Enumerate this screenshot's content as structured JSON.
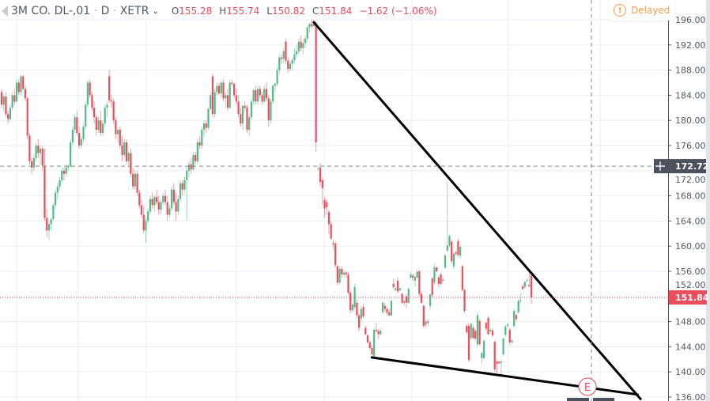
{
  "header": {
    "symbol": "3M CO. DL-,01",
    "interval": "D",
    "exchange": "XETR",
    "open_label": "O",
    "open": "155.28",
    "high_label": "H",
    "high": "155.74",
    "low_label": "L",
    "low": "150.82",
    "close_label": "C",
    "close": "151.84",
    "change": "−1.62 (−1.06%)",
    "delayed": "Delayed"
  },
  "colors": {
    "up": "#53b987",
    "down": "#eb4d5c",
    "grid": "#e9eff3",
    "axis_text": "#4f5966",
    "trendline": "#000000",
    "crosshair_label": "#4c525e",
    "delayed": "#ff9f43"
  },
  "chart_data": {
    "type": "candlestick",
    "ylim": [
      135.5,
      198
    ],
    "y_ticks": [
      "196.00",
      "192.00",
      "188.00",
      "184.00",
      "180.00",
      "176.00",
      "172.00",
      "168.00",
      "164.00",
      "160.00",
      "156.00",
      "152.00",
      "148.00",
      "144.00",
      "140.00",
      "136.00"
    ],
    "last_price": "151.84",
    "crosshair_price": "172.72",
    "event_marker": "E",
    "candles_ohlc": [
      [
        184.5,
        185,
        182,
        182.5
      ],
      [
        182.5,
        184,
        181.5,
        183.8
      ],
      [
        183.8,
        184.5,
        180.5,
        181
      ],
      [
        181,
        181.5,
        179.5,
        180.2
      ],
      [
        180.2,
        182.5,
        180,
        182
      ],
      [
        182,
        184.5,
        181.5,
        184
      ],
      [
        184,
        185,
        182.5,
        183
      ],
      [
        183,
        186.5,
        182.8,
        186
      ],
      [
        186,
        186.5,
        184,
        184.5
      ],
      [
        184.5,
        187.2,
        184,
        187
      ],
      [
        187,
        187.3,
        184.8,
        185
      ],
      [
        185,
        185.5,
        183,
        183.5
      ],
      [
        183.5,
        183.8,
        177,
        177.6
      ],
      [
        177.6,
        178,
        173,
        173.5
      ],
      [
        173.5,
        174,
        171.5,
        172.5
      ],
      [
        172.5,
        174.5,
        172,
        174
      ],
      [
        174,
        176.5,
        173.5,
        176
      ],
      [
        176,
        177,
        174,
        174.8
      ],
      [
        174.8,
        176,
        173,
        175.5
      ],
      [
        175.5,
        176,
        172,
        172.8
      ],
      [
        172.8,
        175.5,
        164,
        164.5
      ],
      [
        164.5,
        166,
        161.5,
        162.5
      ],
      [
        162.5,
        164,
        161,
        163.5
      ],
      [
        163.5,
        164.5,
        162.5,
        164.3
      ],
      [
        164.3,
        167,
        164,
        166.5
      ],
      [
        166.5,
        169,
        166,
        168.5
      ],
      [
        168.5,
        170,
        167.5,
        169.5
      ],
      [
        169.5,
        171,
        169,
        170.5
      ],
      [
        170.5,
        172.5,
        170,
        172
      ],
      [
        172,
        172.5,
        170.5,
        171.5
      ],
      [
        171.5,
        173,
        171,
        172.5
      ],
      [
        172.5,
        173,
        172,
        172.7
      ],
      [
        172.7,
        177,
        172.5,
        176.5
      ],
      [
        176.5,
        179,
        176,
        178.5
      ],
      [
        178.5,
        181,
        178,
        180.5
      ],
      [
        180.5,
        181.5,
        177.5,
        178
      ],
      [
        178,
        179,
        175.5,
        176
      ],
      [
        176,
        177.5,
        175.5,
        177
      ],
      [
        177,
        179.5,
        176.5,
        179
      ],
      [
        179,
        183,
        178.5,
        182.5
      ],
      [
        182.5,
        186.5,
        182,
        186
      ],
      [
        186,
        186.5,
        183.5,
        184
      ],
      [
        184,
        184.5,
        181.5,
        182
      ],
      [
        182,
        183,
        179.5,
        180.5
      ],
      [
        180.5,
        181,
        177.5,
        178.5
      ],
      [
        178.5,
        180.5,
        178,
        180
      ],
      [
        180,
        181.5,
        177.5,
        178
      ],
      [
        178,
        180,
        177.5,
        179.5
      ],
      [
        179.5,
        182.5,
        179,
        182
      ],
      [
        182,
        183,
        180.5,
        182.5
      ],
      [
        187,
        188,
        182.8,
        183.2
      ],
      [
        183.2,
        184,
        182,
        183
      ],
      [
        183,
        183.5,
        179.5,
        180
      ],
      [
        180,
        180.5,
        177,
        177.8
      ],
      [
        177.8,
        179,
        176.5,
        178.5
      ],
      [
        178.5,
        179,
        175.5,
        176
      ],
      [
        176,
        177.5,
        173.5,
        174.5
      ],
      [
        174.5,
        177,
        174,
        176.5
      ],
      [
        176.5,
        177,
        173,
        173.5
      ],
      [
        173.5,
        175,
        172.5,
        174.8
      ],
      [
        174.8,
        175.5,
        171,
        171.5
      ],
      [
        171.5,
        172.5,
        169,
        169.5
      ],
      [
        169.5,
        172,
        169,
        171.5
      ],
      [
        171.5,
        172,
        168,
        168.5
      ],
      [
        168.5,
        169,
        166,
        166.5
      ],
      [
        166.5,
        167.5,
        164.5,
        165
      ],
      [
        165,
        166.5,
        162,
        162.5
      ],
      [
        162.5,
        164.5,
        160.5,
        164
      ],
      [
        164,
        166,
        163.5,
        165.5
      ],
      [
        165.5,
        168,
        165,
        167.5
      ],
      [
        167.5,
        168.5,
        166,
        166.5
      ],
      [
        166.5,
        168,
        165.5,
        167.8
      ],
      [
        167.8,
        169,
        166.5,
        167
      ],
      [
        167,
        168,
        165,
        165.8
      ],
      [
        165.8,
        167.5,
        165,
        167
      ],
      [
        167,
        168.5,
        166.5,
        168
      ],
      [
        168,
        169,
        166.5,
        167
      ],
      [
        167,
        168,
        164,
        165
      ],
      [
        165,
        166.5,
        164.5,
        166
      ],
      [
        166,
        169.5,
        165.5,
        169
      ],
      [
        169,
        170,
        166.5,
        167
      ],
      [
        167,
        168.5,
        164,
        165.5
      ],
      [
        165.5,
        168,
        165,
        167.5
      ],
      [
        167.5,
        170.5,
        167,
        170
      ],
      [
        170,
        170.5,
        168,
        169
      ],
      [
        169,
        171,
        168.5,
        170.5
      ],
      [
        170.5,
        172.5,
        164,
        172
      ],
      [
        172,
        173.5,
        171,
        173
      ],
      [
        173,
        174,
        171.5,
        172.2
      ],
      [
        172.2,
        175,
        172,
        174.5
      ],
      [
        174.5,
        175,
        173,
        173.5
      ],
      [
        173.5,
        177,
        173,
        176.5
      ],
      [
        176.5,
        177.5,
        175.5,
        176
      ],
      [
        176,
        179,
        175.5,
        178.5
      ],
      [
        178.5,
        180,
        177.5,
        179.5
      ],
      [
        179.5,
        180,
        178,
        178.8
      ],
      [
        178.8,
        182,
        178.5,
        181.8
      ],
      [
        181.8,
        184.5,
        181.5,
        184
      ],
      [
        187,
        187.5,
        180.5,
        181
      ],
      [
        181,
        185,
        180.5,
        184.5
      ],
      [
        184.5,
        186,
        184,
        185.5
      ],
      [
        185.5,
        186,
        184,
        184.3
      ],
      [
        184.3,
        186.5,
        183.5,
        186
      ],
      [
        186,
        186.5,
        183,
        183.5
      ],
      [
        183.5,
        184.5,
        182,
        184
      ],
      [
        184,
        185,
        181.5,
        182
      ],
      [
        182,
        186.5,
        181.8,
        186
      ],
      [
        186,
        186.5,
        185.5,
        185.8
      ],
      [
        185.8,
        186,
        183.5,
        184
      ],
      [
        184,
        185,
        182.5,
        183
      ],
      [
        183,
        184,
        180.5,
        181
      ],
      [
        181,
        182,
        179,
        179.5
      ],
      [
        179.5,
        182.5,
        178.5,
        182.3
      ],
      [
        182.3,
        183,
        181.5,
        182
      ],
      [
        182,
        182.5,
        178,
        178.5
      ],
      [
        178.5,
        181,
        177.5,
        180.5
      ],
      [
        180.5,
        183.5,
        180,
        183
      ],
      [
        183,
        185,
        182.5,
        184.8
      ],
      [
        184.8,
        185.5,
        182.5,
        183
      ],
      [
        183,
        185.5,
        182.5,
        185
      ],
      [
        185,
        185.5,
        183.5,
        184
      ],
      [
        184,
        184.5,
        182.5,
        183
      ],
      [
        183,
        185.5,
        182.8,
        185
      ],
      [
        185,
        186,
        183,
        183.5
      ],
      [
        183.5,
        184,
        179,
        180
      ],
      [
        180,
        183.5,
        179.5,
        183
      ],
      [
        183,
        185.8,
        182.5,
        185.5
      ],
      [
        185.5,
        186,
        184.5,
        185.8
      ],
      [
        185.8,
        188.5,
        185.5,
        188
      ],
      [
        188,
        190.5,
        187.5,
        190
      ],
      [
        190,
        190.5,
        189,
        189.8
      ],
      [
        189.8,
        191.5,
        189,
        191
      ],
      [
        192.5,
        193,
        189,
        189.5
      ],
      [
        189.5,
        190,
        187.5,
        188.2
      ],
      [
        188.2,
        189.5,
        187.8,
        189
      ],
      [
        189,
        190,
        188,
        189.6
      ],
      [
        189.6,
        191.5,
        189,
        190.5
      ],
      [
        190.5,
        192,
        190,
        191
      ],
      [
        191,
        193,
        190.5,
        192.5
      ],
      [
        192.5,
        193.5,
        191,
        191.5
      ],
      [
        191.5,
        193,
        190.5,
        192.3
      ],
      [
        192.3,
        193.5,
        191.5,
        193
      ],
      [
        193,
        195,
        192.5,
        194.8
      ],
      [
        194.8,
        195.5,
        194,
        195.3
      ],
      [
        195.3,
        196,
        194.5,
        195
      ],
      [
        195,
        196,
        194.8,
        195.5
      ],
      [
        195.5,
        195.8,
        175,
        176.5
      ],
      [
        172.3,
        172.6,
        172,
        172.4
      ],
      [
        172.5,
        173.2,
        169.5,
        170.2
      ],
      [
        170.5,
        171,
        166.5,
        169.2
      ],
      [
        167.3,
        167.8,
        164.5,
        166
      ],
      [
        167,
        167.5,
        165,
        166.2
      ],
      [
        165.4,
        165.8,
        162,
        163.5
      ],
      [
        163.5,
        164,
        161,
        161.2
      ],
      [
        160.5,
        161,
        159.5,
        160.3
      ],
      [
        160.4,
        160.8,
        156.5,
        157
      ],
      [
        156.8,
        157,
        153.8,
        154.2
      ],
      [
        154.2,
        156.8,
        154,
        156.4
      ],
      [
        156.4,
        156.8,
        155,
        155.5
      ],
      [
        155.5,
        156.2,
        155.2,
        155.8
      ],
      [
        155.8,
        156,
        155,
        155.5
      ],
      [
        155.5,
        155.8,
        152.3,
        152.6
      ],
      [
        152.6,
        153,
        149.3,
        149.8
      ],
      [
        149.8,
        151,
        149.5,
        150.7
      ],
      [
        150.3,
        154,
        150,
        153.5
      ],
      [
        151,
        151.5,
        148.5,
        149
      ],
      [
        149,
        149.3,
        146.5,
        147
      ],
      [
        148.5,
        150.5,
        148,
        150
      ],
      [
        150.3,
        150.8,
        148.5,
        148.8
      ],
      [
        147,
        147.3,
        145.8,
        146
      ],
      [
        145.8,
        146,
        144.5,
        144.7
      ],
      [
        144.7,
        145,
        143.5,
        143.8
      ],
      [
        143.8,
        144.3,
        142.6,
        142.8
      ],
      [
        142.5,
        147,
        142.2,
        146.7
      ],
      [
        146.7,
        147.8,
        146.2,
        146.5
      ],
      [
        146.5,
        146.8,
        145.2,
        146
      ],
      [
        146,
        147,
        145.8,
        146.5
      ],
      [
        149.5,
        151.2,
        149.2,
        151
      ],
      [
        150.5,
        151,
        149.5,
        150
      ],
      [
        150,
        150.5,
        149,
        149.4
      ],
      [
        149.5,
        150,
        148.8,
        149
      ],
      [
        149,
        151.5,
        148.8,
        151.3
      ],
      [
        154,
        154.8,
        153.2,
        153.5
      ],
      [
        153,
        153.6,
        152.8,
        153.3
      ],
      [
        154.5,
        155,
        152.5,
        152.8
      ],
      [
        153,
        153.5,
        152.8,
        153.3
      ],
      [
        152.4,
        152.6,
        150.8,
        151
      ],
      [
        151.2,
        151.5,
        150.6,
        151
      ],
      [
        152,
        152.4,
        150.2,
        151
      ],
      [
        151,
        153.5,
        150.8,
        153.2
      ],
      [
        155,
        155.8,
        154.8,
        155.5
      ],
      [
        155.3,
        155.6,
        154.5,
        155
      ],
      [
        154.5,
        155.3,
        153.5,
        155.1
      ],
      [
        155,
        156.3,
        154.8,
        155.9
      ],
      [
        156,
        156.2,
        152,
        152.4
      ],
      [
        152.4,
        152.8,
        150.8,
        151
      ],
      [
        150.5,
        150.7,
        147,
        147.3
      ],
      [
        147.5,
        148.3,
        147,
        148
      ],
      [
        148,
        148.4,
        147.3,
        147.8
      ],
      [
        150.5,
        152.5,
        150,
        152.3
      ],
      [
        154.9,
        155,
        151.8,
        152.2
      ],
      [
        154.2,
        157.2,
        153.8,
        156.6
      ],
      [
        156.6,
        156.8,
        155.8,
        156
      ],
      [
        155,
        155.3,
        153.5,
        154
      ],
      [
        155.5,
        155.8,
        153.8,
        154
      ],
      [
        154.5,
        155,
        154.3,
        154.7
      ],
      [
        156.6,
        158.8,
        156.4,
        158.5
      ],
      [
        159.3,
        170.2,
        159,
        160.1
      ],
      [
        160.1,
        161.8,
        159.8,
        161.6
      ],
      [
        160.7,
        161,
        157.2,
        157.6
      ],
      [
        156.8,
        159,
        156.3,
        158.8
      ],
      [
        159,
        159.3,
        158.5,
        158.8
      ],
      [
        160.8,
        161.2,
        158.3,
        158.6
      ],
      [
        158.5,
        160.3,
        158,
        159.9
      ],
      [
        156.8,
        157,
        152.8,
        153
      ],
      [
        153,
        153.3,
        149.4,
        149.7
      ],
      [
        147.3,
        147.6,
        146,
        146.3
      ],
      [
        147.3,
        147.8,
        141.6,
        141.9
      ],
      [
        145.4,
        147.8,
        145,
        147.6
      ],
      [
        147,
        147.4,
        145.2,
        145.4
      ],
      [
        146.5,
        146.8,
        145,
        145.3
      ],
      [
        144.4,
        149.5,
        144,
        149
      ],
      [
        148.1,
        148.4,
        144.2,
        144.4
      ],
      [
        142.2,
        143.3,
        141.2,
        143
      ],
      [
        142.2,
        145.2,
        142,
        144.9
      ],
      [
        147.8,
        148,
        146.6,
        146.9
      ],
      [
        148.6,
        148.9,
        145.8,
        146
      ],
      [
        146.5,
        146.9,
        146.3,
        146.7
      ],
      [
        146.6,
        147,
        145.5,
        145.8
      ],
      [
        144.8,
        145,
        140,
        140.4
      ],
      [
        141.6,
        141.9,
        139.8,
        141.3
      ],
      [
        141.6,
        141.8,
        141.2,
        141.4
      ],
      [
        141.4,
        142,
        139.4,
        141.6
      ],
      [
        142.8,
        145.5,
        142.5,
        145.3
      ],
      [
        145.9,
        147.5,
        145.6,
        147.2
      ],
      [
        147.3,
        147.8,
        147.1,
        147.5
      ],
      [
        146.7,
        147,
        144.3,
        144.7
      ],
      [
        144.7,
        145.3,
        144.5,
        145
      ],
      [
        147.3,
        150,
        147,
        149.7
      ],
      [
        149,
        149.3,
        148,
        148.4
      ],
      [
        149.5,
        151.5,
        149.2,
        151.3
      ],
      [
        151.3,
        152.5,
        151,
        151.4
      ],
      [
        153.6,
        154,
        153,
        153.2
      ],
      [
        153.5,
        154.5,
        153.2,
        154.3
      ],
      [
        154.5,
        154.8,
        154.3,
        154.6
      ],
      [
        153.8,
        156,
        153.5,
        153.6
      ],
      [
        155.28,
        155.74,
        150.82,
        151.84
      ]
    ],
    "trendlines": [
      {
        "from": {
          "bar": 145,
          "price": 195.6
        },
        "to": {
          "bar": 296.7,
          "price": 135.7
        }
      },
      {
        "from": {
          "bar": 171.9,
          "price": 142.3
        },
        "to": {
          "bar": 295.3,
          "price": 136.4
        }
      }
    ]
  }
}
